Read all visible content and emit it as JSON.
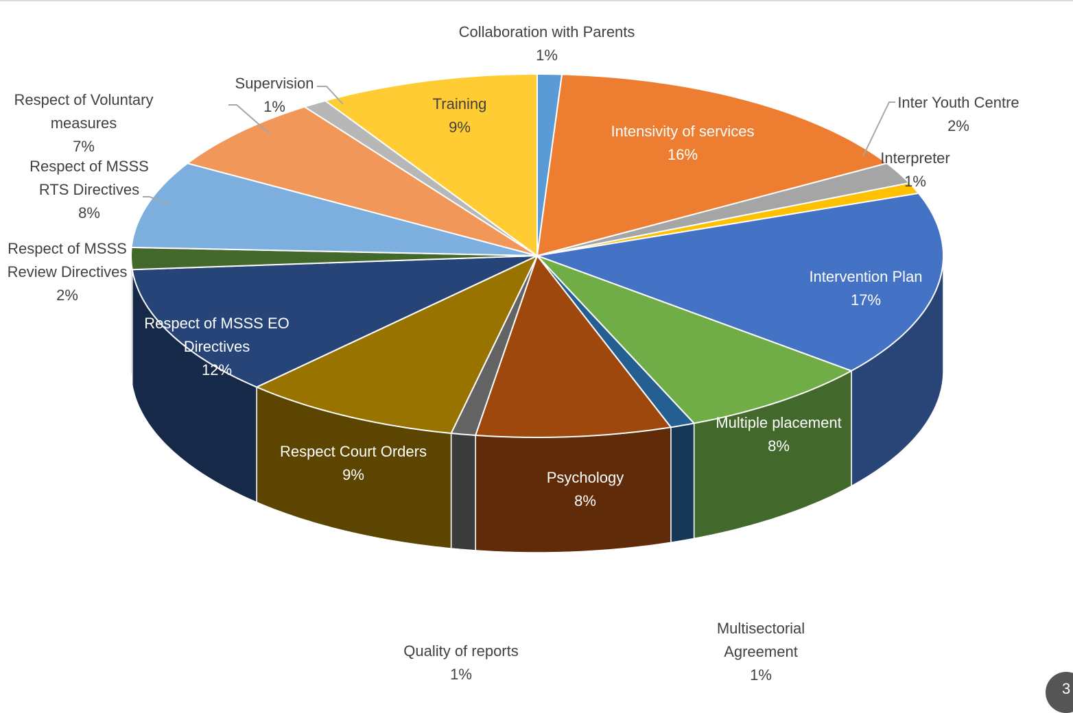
{
  "chart_data": {
    "type": "pie",
    "style": "3d-exploded-none",
    "slices": [
      {
        "label": "Collaboration with Parents",
        "value": 1,
        "display": "1%",
        "color": "#5B9BD5"
      },
      {
        "label": "Intensivity of services",
        "value": 16,
        "display": "16%",
        "color": "#ED7D31"
      },
      {
        "label": "Inter Youth Centre",
        "value": 2,
        "display": "2%",
        "color": "#A5A5A5"
      },
      {
        "label": "Interpreter",
        "value": 1,
        "display": "1%",
        "color": "#FFC000"
      },
      {
        "label": "Intervention Plan",
        "value": 17,
        "display": "17%",
        "color": "#4472C4"
      },
      {
        "label": "Multiple placement",
        "value": 8,
        "display": "8%",
        "color": "#70AD47"
      },
      {
        "label": "Multisectorial Agreement",
        "value": 1,
        "display": "1%",
        "color": "#255E91"
      },
      {
        "label": "Psychology",
        "value": 8,
        "display": "8%",
        "color": "#9E480E"
      },
      {
        "label": "Quality of reports",
        "value": 1,
        "display": "1%",
        "color": "#636363"
      },
      {
        "label": "Respect Court Orders",
        "value": 9,
        "display": "9%",
        "color": "#997300"
      },
      {
        "label": "Respect of MSSS EO Directives",
        "value": 12,
        "display": "12%",
        "color": "#264478"
      },
      {
        "label": "Respect of MSSS Review Directives",
        "value": 2,
        "display": "2%",
        "color": "#43682B"
      },
      {
        "label": "Respect of MSSS RTS Directives",
        "value": 8,
        "display": "8%",
        "color": "#7CAFDD"
      },
      {
        "label": "Respect of Voluntary measures",
        "value": 7,
        "display": "7%",
        "color": "#F1975A"
      },
      {
        "label": "Supervision",
        "value": 1,
        "display": "1%",
        "color": "#B7B7B7"
      },
      {
        "label": "Training",
        "value": 9,
        "display": "9%",
        "color": "#FFCD33"
      }
    ],
    "title": "",
    "legend": "none",
    "data_labels": "category and percentage"
  },
  "page_number": "3"
}
